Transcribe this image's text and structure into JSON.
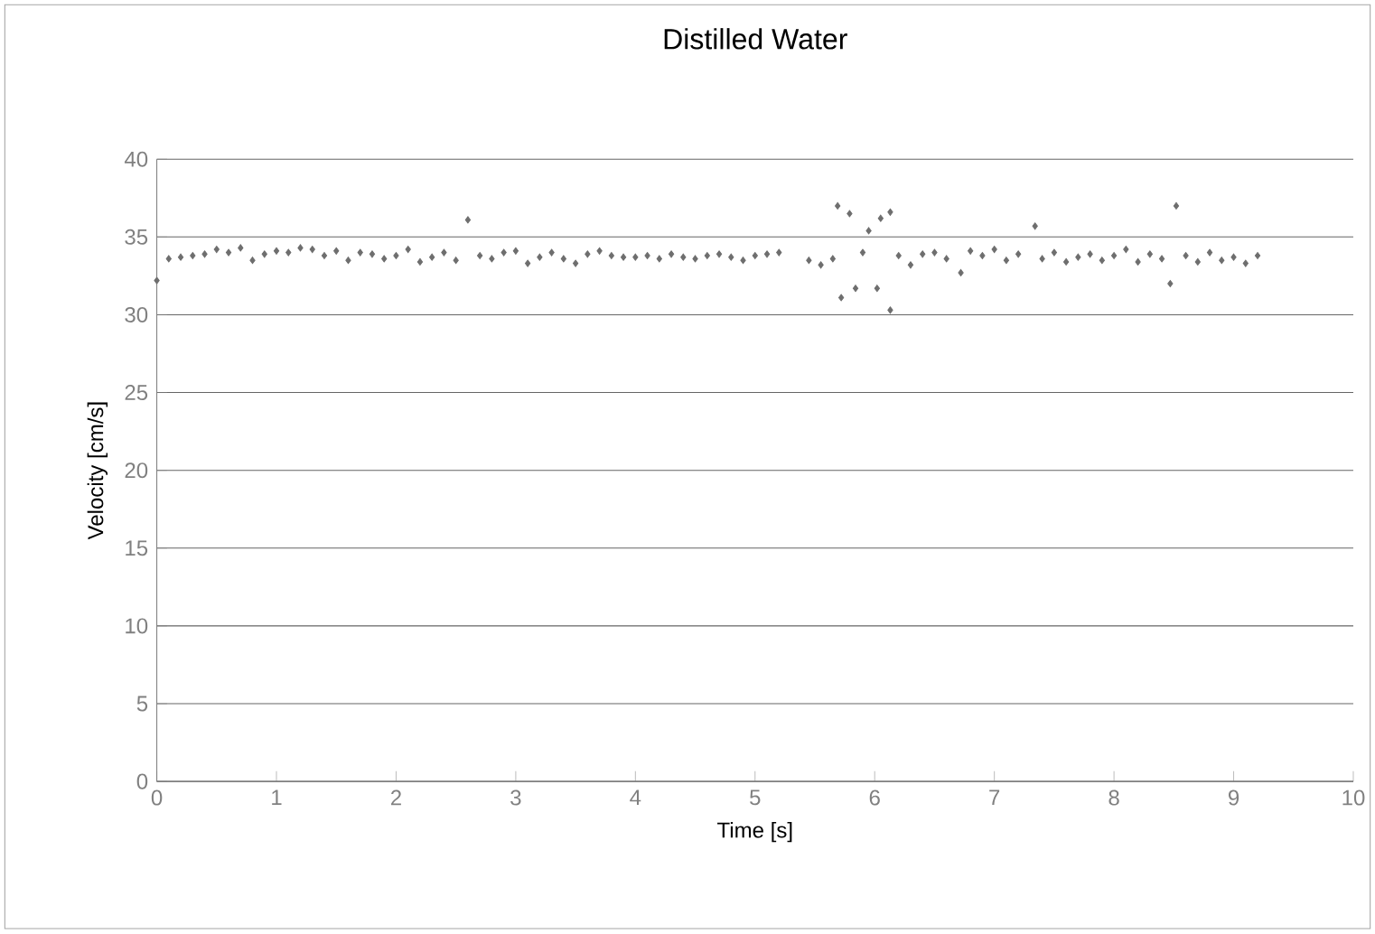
{
  "chart_data": {
    "type": "scatter",
    "title": "Distilled Water",
    "xlabel": "Time [s]",
    "ylabel": "Velocity [cm/s]",
    "xlim": [
      0,
      10
    ],
    "ylim": [
      0,
      40
    ],
    "xticks": [
      0,
      1,
      2,
      3,
      4,
      5,
      6,
      7,
      8,
      9,
      10
    ],
    "yticks": [
      0,
      5,
      10,
      15,
      20,
      25,
      30,
      35,
      40
    ],
    "grid": "y",
    "marker": "diamond",
    "series": [
      {
        "color": "#6e6e6e",
        "x": [
          0.0,
          0.1,
          0.2,
          0.3,
          0.4,
          0.5,
          0.6,
          0.7,
          0.8,
          0.9,
          1.0,
          1.1,
          1.2,
          1.3,
          1.4,
          1.5,
          1.6,
          1.7,
          1.8,
          1.9,
          2.0,
          2.1,
          2.2,
          2.3,
          2.4,
          2.5,
          2.6,
          2.7,
          2.8,
          2.9,
          3.0,
          3.1,
          3.2,
          3.3,
          3.4,
          3.5,
          3.6,
          3.7,
          3.8,
          3.9,
          4.0,
          4.1,
          4.2,
          4.3,
          4.4,
          4.5,
          4.6,
          4.7,
          4.8,
          4.9,
          5.0,
          5.1,
          5.2,
          5.45,
          5.55,
          5.65,
          5.69,
          5.72,
          5.79,
          5.84,
          5.9,
          5.95,
          6.02,
          6.05,
          6.13,
          6.13,
          6.2,
          6.3,
          6.4,
          6.5,
          6.6,
          6.72,
          6.8,
          6.9,
          7.0,
          7.1,
          7.2,
          7.34,
          7.4,
          7.5,
          7.6,
          7.7,
          7.8,
          7.9,
          8.0,
          8.1,
          8.2,
          8.3,
          8.4,
          8.47,
          8.52,
          8.6,
          8.7,
          8.8,
          8.9,
          9.0,
          9.1,
          9.2
        ],
        "values": [
          32.2,
          33.6,
          33.7,
          33.8,
          33.9,
          34.2,
          34.0,
          34.3,
          33.5,
          33.9,
          34.1,
          34.0,
          34.3,
          34.2,
          33.8,
          34.1,
          33.5,
          34.0,
          33.9,
          33.6,
          33.8,
          34.2,
          33.4,
          33.7,
          34.0,
          33.5,
          36.1,
          33.8,
          33.6,
          34.0,
          34.1,
          33.3,
          33.7,
          34.0,
          33.6,
          33.3,
          33.9,
          34.1,
          33.8,
          33.7,
          33.7,
          33.8,
          33.6,
          33.9,
          33.7,
          33.6,
          33.8,
          33.9,
          33.7,
          33.5,
          33.8,
          33.9,
          34.0,
          33.5,
          33.2,
          33.6,
          37.0,
          31.1,
          36.5,
          31.7,
          34.0,
          35.4,
          31.7,
          36.2,
          36.6,
          30.3,
          33.8,
          33.2,
          33.9,
          34.0,
          33.6,
          32.7,
          34.1,
          33.8,
          34.2,
          33.5,
          33.9,
          35.7,
          33.6,
          34.0,
          33.4,
          33.7,
          33.9,
          33.5,
          33.8,
          34.2,
          33.4,
          33.9,
          33.6,
          32.0,
          37.0,
          33.8,
          33.4,
          34.0,
          33.5,
          33.7,
          33.3,
          33.8
        ]
      }
    ]
  }
}
